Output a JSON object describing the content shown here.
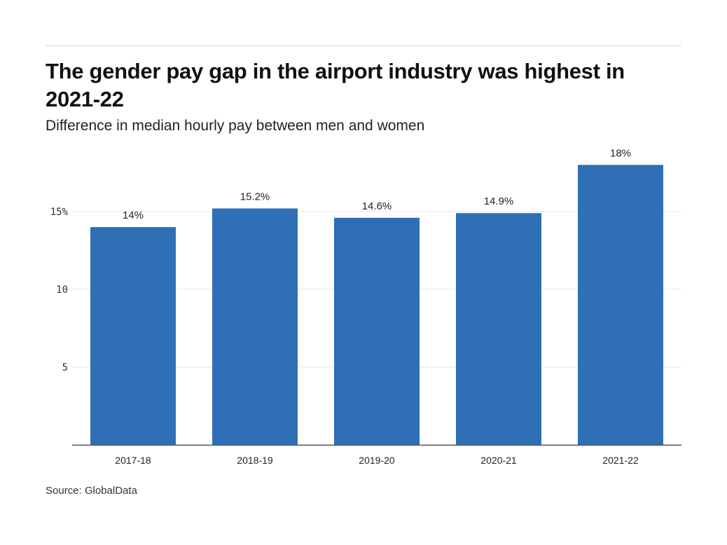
{
  "title": "The gender pay gap in the airport industry was highest in 2021-22",
  "subtitle": "Difference in median hourly pay between men and women",
  "source": "Source: GlobalData",
  "colors": {
    "bar": "#2e6fb5",
    "grid": "#e6e6e6",
    "axis": "#555555"
  },
  "chart_data": {
    "type": "bar",
    "title": "The gender pay gap in the airport industry was highest in 2021-22",
    "subtitle": "Difference in median hourly pay between men and women",
    "xlabel": "",
    "ylabel": "",
    "categories": [
      "2017-18",
      "2018-19",
      "2019-20",
      "2020-21",
      "2021-22"
    ],
    "values": [
      14,
      15.2,
      14.6,
      14.9,
      18
    ],
    "data_labels": [
      "14%",
      "15.2%",
      "14.6%",
      "14.9%",
      "18%"
    ],
    "ylim": [
      0,
      18
    ],
    "yticks": [
      5,
      10,
      15
    ],
    "ytick_labels": [
      "5",
      "10",
      "15%"
    ],
    "grid": true,
    "legend": "none"
  }
}
